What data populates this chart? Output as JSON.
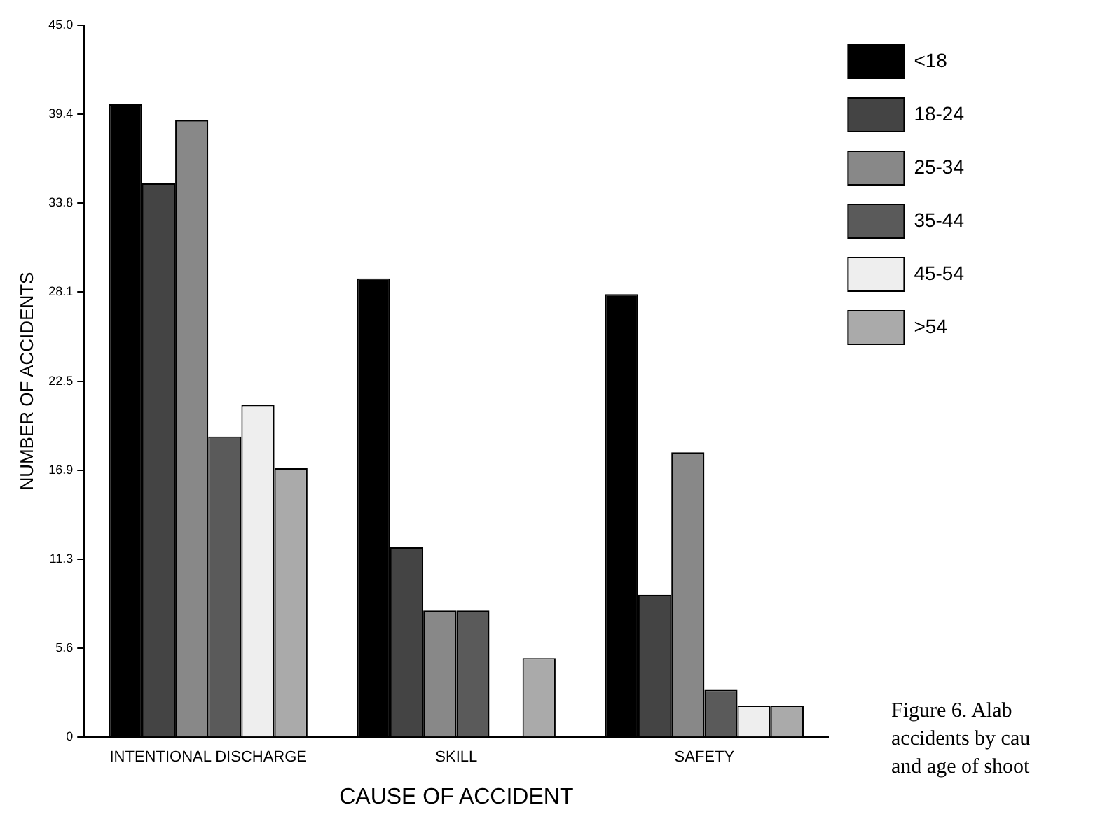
{
  "chart_data": {
    "type": "bar",
    "xlabel": "CAUSE OF ACCIDENT",
    "ylabel": "NUMBER OF ACCIDENTS",
    "categories": [
      "INTENTIONAL DISCHARGE",
      "SKILL",
      "SAFETY"
    ],
    "series": [
      {
        "name": "<18",
        "color": "#000000",
        "values": [
          40,
          29,
          28
        ]
      },
      {
        "name": "18-24",
        "color": "#444444",
        "values": [
          35,
          12,
          9
        ]
      },
      {
        "name": "25-34",
        "color": "#888888",
        "values": [
          39,
          8,
          18
        ]
      },
      {
        "name": "35-44",
        "color": "#5a5a5a",
        "values": [
          19,
          8,
          3
        ]
      },
      {
        "name": "45-54",
        "color": "#eeeeee",
        "values": [
          21,
          0,
          2
        ]
      },
      {
        "name": ">54",
        "color": "#aaaaaa",
        "values": [
          17,
          5,
          2
        ]
      }
    ],
    "ylim": [
      0,
      45
    ],
    "yticks": [
      0,
      {
        "value": 5.625,
        "label": "5.6"
      },
      {
        "value": 11.25,
        "label": "11.3"
      },
      {
        "value": 16.875,
        "label": "16.9"
      },
      {
        "value": 22.5,
        "label": "22.5"
      },
      {
        "value": 28.125,
        "label": "28.1"
      },
      {
        "value": 33.75,
        "label": "33.8"
      },
      {
        "value": 39.375,
        "label": "39.4"
      },
      {
        "value": 45,
        "label": "45.0"
      }
    ],
    "grid": false,
    "legend": "top right",
    "annotations": [
      "Figure 6.    Alab",
      "accidents by cau",
      "and age of shoot"
    ]
  }
}
